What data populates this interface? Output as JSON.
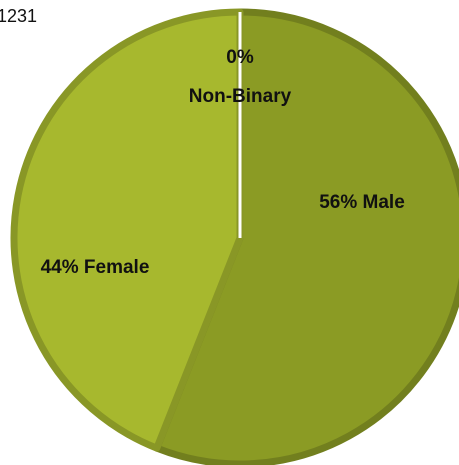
{
  "chart_data": {
    "type": "pie",
    "title": "1231",
    "categories": [
      "Male",
      "Female",
      "Non-Binary"
    ],
    "values": [
      56,
      44,
      0
    ],
    "value_labels": [
      "56%",
      "44%",
      "0%"
    ],
    "colors": [
      "#8b9b24",
      "#a7b82e",
      "#ffffff"
    ]
  }
}
